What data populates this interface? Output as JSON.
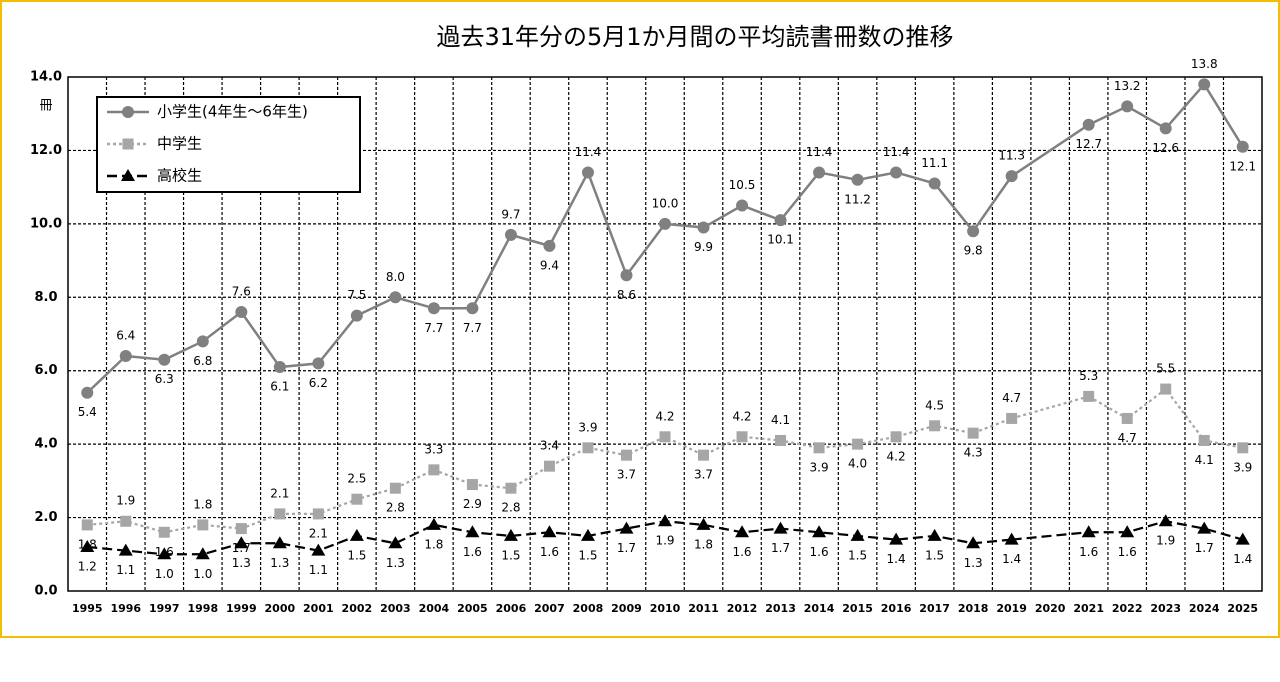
{
  "chart_data": {
    "type": "line",
    "title": "過去31年分の5月1か月間の平均読書冊数の推移",
    "y_label": "冊",
    "categories": [
      "1995",
      "1996",
      "1997",
      "1998",
      "1999",
      "2000",
      "2001",
      "2002",
      "2003",
      "2004",
      "2005",
      "2006",
      "2007",
      "2008",
      "2009",
      "2010",
      "2011",
      "2012",
      "2013",
      "2014",
      "2015",
      "2016",
      "2017",
      "2018",
      "2019",
      "2020",
      "2021",
      "2022",
      "2023",
      "2024",
      "2025"
    ],
    "ylim": [
      0,
      14
    ],
    "yticks": [
      {
        "value": 0,
        "label": "0.0"
      },
      {
        "value": 2,
        "label": "2.0"
      },
      {
        "value": 4,
        "label": "4.0"
      },
      {
        "value": 6,
        "label": "6.0"
      },
      {
        "value": 8,
        "label": "8.0"
      },
      {
        "value": 10,
        "label": "10.0"
      },
      {
        "value": 12,
        "label": "12.0"
      },
      {
        "value": 14,
        "label": "14.0"
      }
    ],
    "grid": true,
    "connect_gaps": true,
    "legend": "top-left",
    "series": [
      {
        "name": "小学生(4年生～6年生)",
        "color": "#808080",
        "marker": "circle",
        "dash": "solid",
        "values": [
          5.4,
          6.4,
          6.3,
          6.8,
          7.6,
          6.1,
          6.2,
          7.5,
          8.0,
          7.7,
          7.7,
          9.7,
          9.4,
          11.4,
          8.6,
          10.0,
          9.9,
          10.5,
          10.1,
          11.4,
          11.2,
          11.4,
          11.1,
          9.8,
          11.3,
          null,
          12.7,
          13.2,
          12.6,
          13.8,
          12.1
        ],
        "value_labels": [
          "5.4",
          "6.4",
          "6.3",
          "6.8",
          "7.6",
          "6.1",
          "6.2",
          "7.5",
          "8.0",
          "7.7",
          "7.7",
          "9.7",
          "9.4",
          "11.4",
          "8.6",
          "10.0",
          "9.9",
          "10.5",
          "10.1",
          "11.4",
          "11.2",
          "11.4",
          "11.1",
          "9.8",
          "11.3",
          null,
          "12.7",
          "13.2",
          "12.6",
          "13.8",
          "12.1"
        ]
      },
      {
        "name": "中学生",
        "color": "#a6a6a6",
        "marker": "square",
        "dash": "dotted",
        "values": [
          1.8,
          1.9,
          1.6,
          1.8,
          1.7,
          2.1,
          2.1,
          2.5,
          2.8,
          3.3,
          2.9,
          2.8,
          3.4,
          3.9,
          3.7,
          4.2,
          3.7,
          4.2,
          4.1,
          3.9,
          4.0,
          4.2,
          4.5,
          4.3,
          4.7,
          null,
          5.3,
          4.7,
          5.5,
          4.1,
          3.9
        ],
        "value_labels": [
          "1.8",
          "1.9",
          "1.6",
          "1.8",
          "1.7",
          "2.1",
          "2.1",
          "2.5",
          "2.8",
          "3.3",
          "2.9",
          "2.8",
          "3.4",
          "3.9",
          "3.7",
          "4.2",
          "3.7",
          "4.2",
          "4.1",
          "3.9",
          "4.0",
          "4.2",
          "4.5",
          "4.3",
          "4.7",
          null,
          "5.3",
          "4.7",
          "5.5",
          "4.1",
          "3.9"
        ]
      },
      {
        "name": "高校生",
        "color": "#000000",
        "marker": "triangle",
        "dash": "dashed",
        "values": [
          1.2,
          1.1,
          1.0,
          1.0,
          1.3,
          1.3,
          1.1,
          1.5,
          1.3,
          1.8,
          1.6,
          1.5,
          1.6,
          1.5,
          1.7,
          1.9,
          1.8,
          1.6,
          1.7,
          1.6,
          1.5,
          1.4,
          1.5,
          1.3,
          1.4,
          null,
          1.6,
          1.6,
          1.9,
          1.7,
          1.4
        ],
        "value_labels": [
          "1.2",
          "1.1",
          "1.0",
          "1.0",
          "1.3",
          "1.3",
          "1.1",
          "1.5",
          "1.3",
          "1.8",
          "1.6",
          "1.5",
          "1.6",
          "1.5",
          "1.7",
          "1.9",
          "1.8",
          "1.6",
          "1.7",
          "1.6",
          "1.5",
          "1.4",
          "1.5",
          "1.3",
          "1.4",
          null,
          "1.6",
          "1.6",
          "1.9",
          "1.7",
          "1.4"
        ]
      }
    ]
  }
}
